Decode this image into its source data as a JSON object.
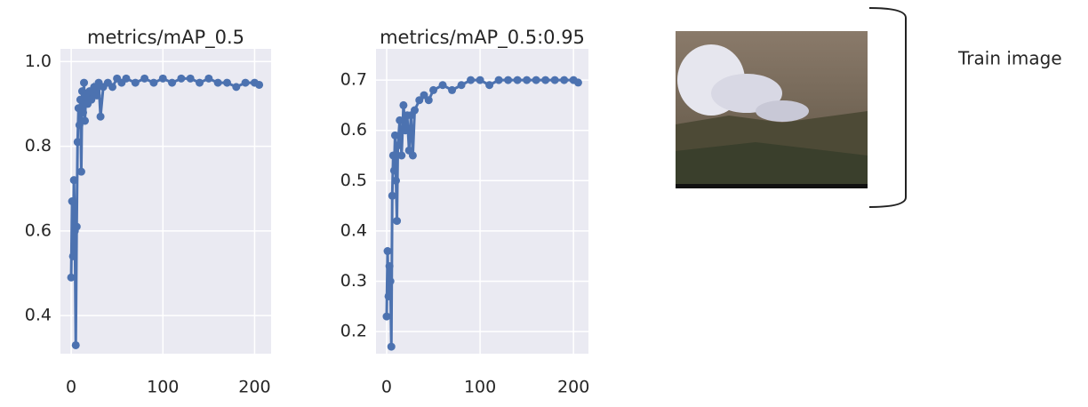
{
  "chart_data": [
    {
      "type": "line",
      "title": "metrics/mAP_0.5",
      "color": "#4c72b0",
      "grid": true,
      "x": [
        0,
        1,
        2,
        3,
        4,
        5,
        6,
        7,
        8,
        9,
        10,
        11,
        12,
        13,
        14,
        15,
        16,
        18,
        20,
        22,
        25,
        28,
        30,
        32,
        35,
        40,
        45,
        50,
        55,
        60,
        70,
        80,
        90,
        100,
        110,
        120,
        130,
        140,
        150,
        160,
        170,
        180,
        190,
        200,
        205
      ],
      "values": [
        0.49,
        0.67,
        0.54,
        0.72,
        0.6,
        0.33,
        0.61,
        0.81,
        0.89,
        0.85,
        0.91,
        0.74,
        0.93,
        0.88,
        0.95,
        0.86,
        0.92,
        0.9,
        0.93,
        0.91,
        0.94,
        0.92,
        0.95,
        0.87,
        0.94,
        0.95,
        0.94,
        0.96,
        0.95,
        0.96,
        0.95,
        0.96,
        0.95,
        0.96,
        0.95,
        0.96,
        0.96,
        0.95,
        0.96,
        0.95,
        0.95,
        0.94,
        0.95,
        0.95,
        0.945
      ],
      "xlim": [
        -11.7,
        218
      ],
      "ylim": [
        0.31,
        1.03
      ],
      "xticks": [
        0,
        100,
        200
      ],
      "yticks": [
        0.4,
        0.6,
        0.8,
        {
          "value": 1,
          "label": "1.0"
        }
      ]
    },
    {
      "type": "line",
      "title": "metrics/mAP_0.5:0.95",
      "color": "#4c72b0",
      "grid": true,
      "x": [
        0,
        1,
        2,
        3,
        4,
        5,
        6,
        7,
        8,
        9,
        10,
        11,
        12,
        14,
        16,
        18,
        20,
        22,
        24,
        26,
        28,
        30,
        35,
        40,
        45,
        50,
        60,
        70,
        80,
        90,
        100,
        110,
        120,
        130,
        140,
        150,
        160,
        170,
        180,
        190,
        200,
        205
      ],
      "values": [
        0.23,
        0.36,
        0.27,
        0.33,
        0.3,
        0.17,
        0.47,
        0.55,
        0.52,
        0.59,
        0.5,
        0.42,
        0.57,
        0.62,
        0.55,
        0.65,
        0.6,
        0.63,
        0.56,
        0.63,
        0.55,
        0.64,
        0.66,
        0.67,
        0.66,
        0.68,
        0.69,
        0.68,
        0.69,
        0.7,
        0.7,
        0.69,
        0.7,
        0.7,
        0.7,
        0.7,
        0.7,
        0.7,
        0.7,
        0.7,
        0.7,
        0.695
      ],
      "xlim": [
        -11.4,
        216
      ],
      "ylim": [
        0.156,
        0.762
      ],
      "xticks": [
        0,
        100,
        200
      ],
      "yticks": [
        0.2,
        0.3,
        0.4,
        0.5,
        0.6,
        0.7
      ]
    }
  ],
  "image": {
    "caption": "Train image"
  }
}
